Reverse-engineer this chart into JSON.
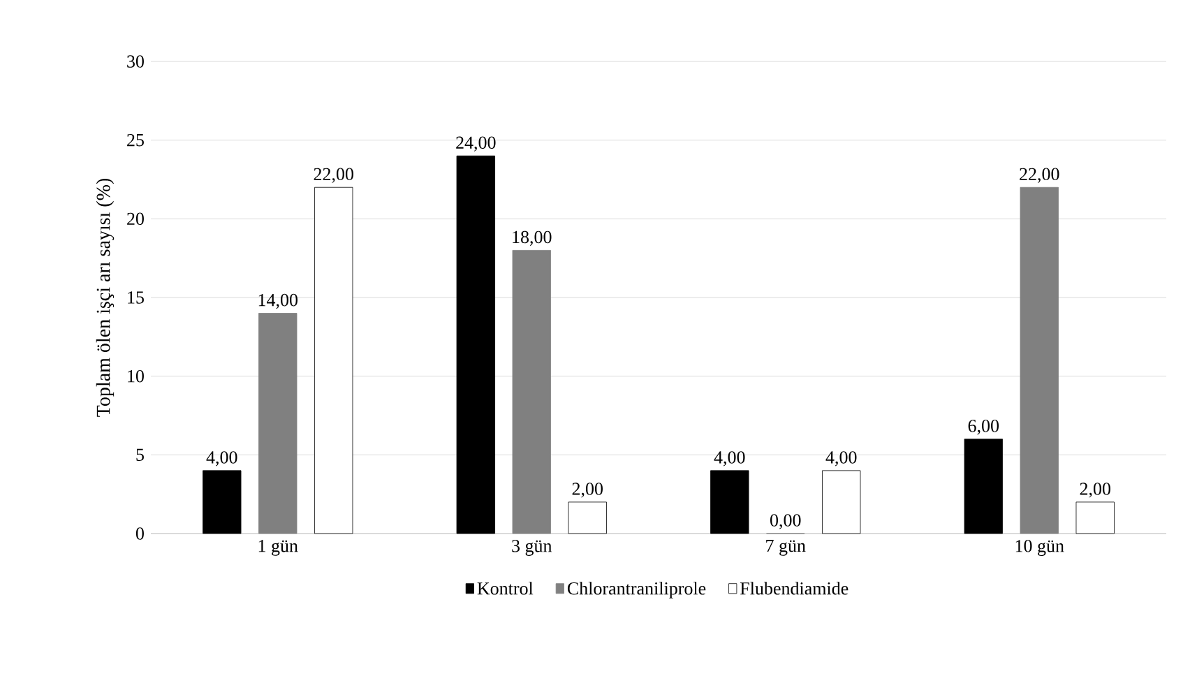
{
  "chart_data": {
    "type": "bar",
    "ylabel": "Toplam ölen işçi arı sayısı (%)",
    "categories": [
      "1 gün",
      "3 gün",
      "7 gün",
      "10 gün"
    ],
    "series": [
      {
        "name": "Kontrol",
        "color": "#000000",
        "values": [
          4,
          24,
          4,
          6
        ],
        "value_labels": [
          "4,00",
          "24,00",
          "4,00",
          "6,00"
        ]
      },
      {
        "name": "Chlorantraniliprole",
        "color": "#808080",
        "values": [
          14,
          18,
          0,
          22
        ],
        "value_labels": [
          "14,00",
          "18,00",
          "0,00",
          "22,00"
        ]
      },
      {
        "name": "Flubendiamide",
        "color": "#ffffff",
        "values": [
          22,
          2,
          4,
          2
        ],
        "value_labels": [
          "22,00",
          "2,00",
          "4,00",
          "2,00"
        ]
      }
    ],
    "ylim": [
      0,
      30
    ],
    "yticks": [
      0,
      5,
      10,
      15,
      20,
      25,
      30
    ],
    "grid": "y",
    "legend": "bottom"
  }
}
